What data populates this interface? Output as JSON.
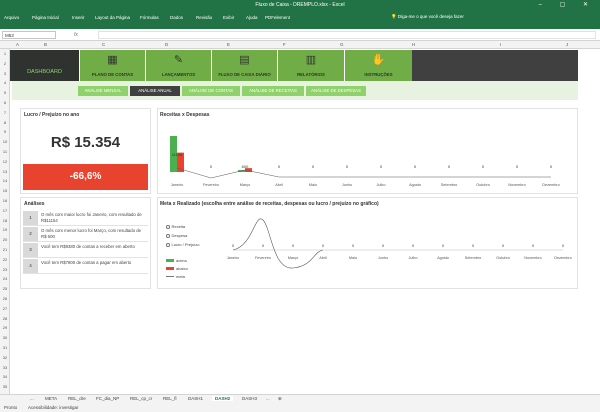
{
  "window": {
    "title": "Fluxo de Caixa - DREMPLO.xlsx  -  Excel",
    "controls": "‒ ▢ ✕"
  },
  "ribbon": {
    "tabs": [
      "Arquivo",
      "Página Inicial",
      "Inserir",
      "Layout da Página",
      "Fórmulas",
      "Dados",
      "Revisão",
      "Exibir",
      "Ajuda",
      "PDFelement"
    ],
    "search": "Diga-me o que você deseja fazer"
  },
  "formula_bar": {
    "name_box": "M53",
    "fx": "fx",
    "content": ""
  },
  "columns": [
    "A",
    "B",
    "C",
    "D",
    "E",
    "F",
    "G",
    "H",
    "I",
    "J"
  ],
  "rows": [
    "1",
    "2",
    "3",
    "4",
    "5",
    "6",
    "7",
    "8",
    "9",
    "10",
    "11",
    "12",
    "13",
    "14",
    "15",
    "16",
    "17",
    "18",
    "19",
    "20",
    "21",
    "22",
    "23",
    "24",
    "25",
    "26",
    "27",
    "28",
    "29",
    "30",
    "31",
    "32",
    "33",
    "34",
    "35"
  ],
  "nav": {
    "dashboard": "DASHBOARD",
    "items": [
      {
        "label": "PLANO DE CONTAS",
        "icon": "grid-icon",
        "glyph": "▦"
      },
      {
        "label": "LANÇAMENTOS",
        "icon": "pencil-icon",
        "glyph": "✎"
      },
      {
        "label": "FLUXO DE CAIXA DIÁRIO",
        "icon": "cash-register-icon",
        "glyph": "▤"
      },
      {
        "label": "RELATÓRIOS",
        "icon": "report-icon",
        "glyph": "▥"
      },
      {
        "label": "INSTRUÇÕES",
        "icon": "hands-icon",
        "glyph": "✋"
      }
    ]
  },
  "subtabs": [
    "ANÁLISE MENSAL",
    "ANÁLISE ANUAL",
    "ANÁLISE DE CONTAS",
    "ANÁLISE DE RECEITAS",
    "ANÁLISE DE DESPESAS"
  ],
  "lucro": {
    "title": "Lucro / Prejuízo no ano",
    "value": "R$ 15.354",
    "percent": "-66,6%"
  },
  "analises": {
    "title": "Análises",
    "rows": [
      {
        "n": "1",
        "text": "O mês com maior lucro foi Janeiro, com resultado de R$11154"
      },
      {
        "n": "2",
        "text": "O mês com menor lucro foi Março, com resultado de R$ 600"
      },
      {
        "n": "3",
        "text": "Você tem R$9380 de contas a receber em aberto"
      },
      {
        "n": "4",
        "text": "Você tem R$7800 de contas a pagar em aberto"
      }
    ]
  },
  "receitas_chart_title": "Receitas x Despesas",
  "meta_chart_title": "Meta x Realizado (escolha entre análise de receitas, despesas ou lucro / prejuízo no gráfico)",
  "radios": [
    "Receita",
    "Despesa",
    "Lucro / Prejuízo"
  ],
  "meta_legend": [
    "acima",
    "abaixo",
    "meta"
  ],
  "chart_data": [
    {
      "type": "bar",
      "title": "Receitas x Despesas",
      "categories": [
        "Janeiro",
        "Fevereiro",
        "Março",
        "Abril",
        "Maio",
        "Junho",
        "Julho",
        "Agosto",
        "Setembro",
        "Outubro",
        "Novembro",
        "Dezembro"
      ],
      "series": [
        {
          "values": [
            11154,
            0,
            600,
            0,
            0,
            0,
            0,
            0,
            0,
            0,
            0,
            0
          ],
          "color": "#4caf50"
        },
        {
          "values": [
            6000,
            0,
            1200,
            0,
            0,
            0,
            0,
            0,
            0,
            0,
            0,
            0
          ],
          "color": "#e8432f"
        }
      ],
      "labels": [
        "11154",
        "0",
        "600",
        "0",
        "0",
        "0",
        "0",
        "0",
        "0",
        "0",
        "0",
        "0"
      ]
    },
    {
      "type": "line",
      "title": "Meta x Realizado",
      "categories": [
        "Janeiro",
        "Fevereiro",
        "Março",
        "Abril",
        "Maio",
        "Junho",
        "Julho",
        "Agosto",
        "Setembro",
        "Outubro",
        "Novembro",
        "Dezembro"
      ],
      "values": [
        0,
        0,
        0,
        0,
        0,
        0,
        0,
        0,
        0,
        0,
        0,
        0
      ],
      "labels": [
        "0",
        "0",
        "0",
        "0",
        "0",
        "0",
        "0",
        "0",
        "0",
        "0",
        "0",
        "0"
      ]
    }
  ],
  "sheets": [
    "...",
    "META",
    "REL_dre",
    "FC_dia_NP",
    "REL_cp_cr",
    "REL_fl",
    "DASH1",
    "DASH2",
    "DASH3",
    "..."
  ],
  "active_sheet": "DASH2",
  "status": {
    "ready": "Pronto",
    "accessibility": "Acessibilidade: investigar"
  }
}
